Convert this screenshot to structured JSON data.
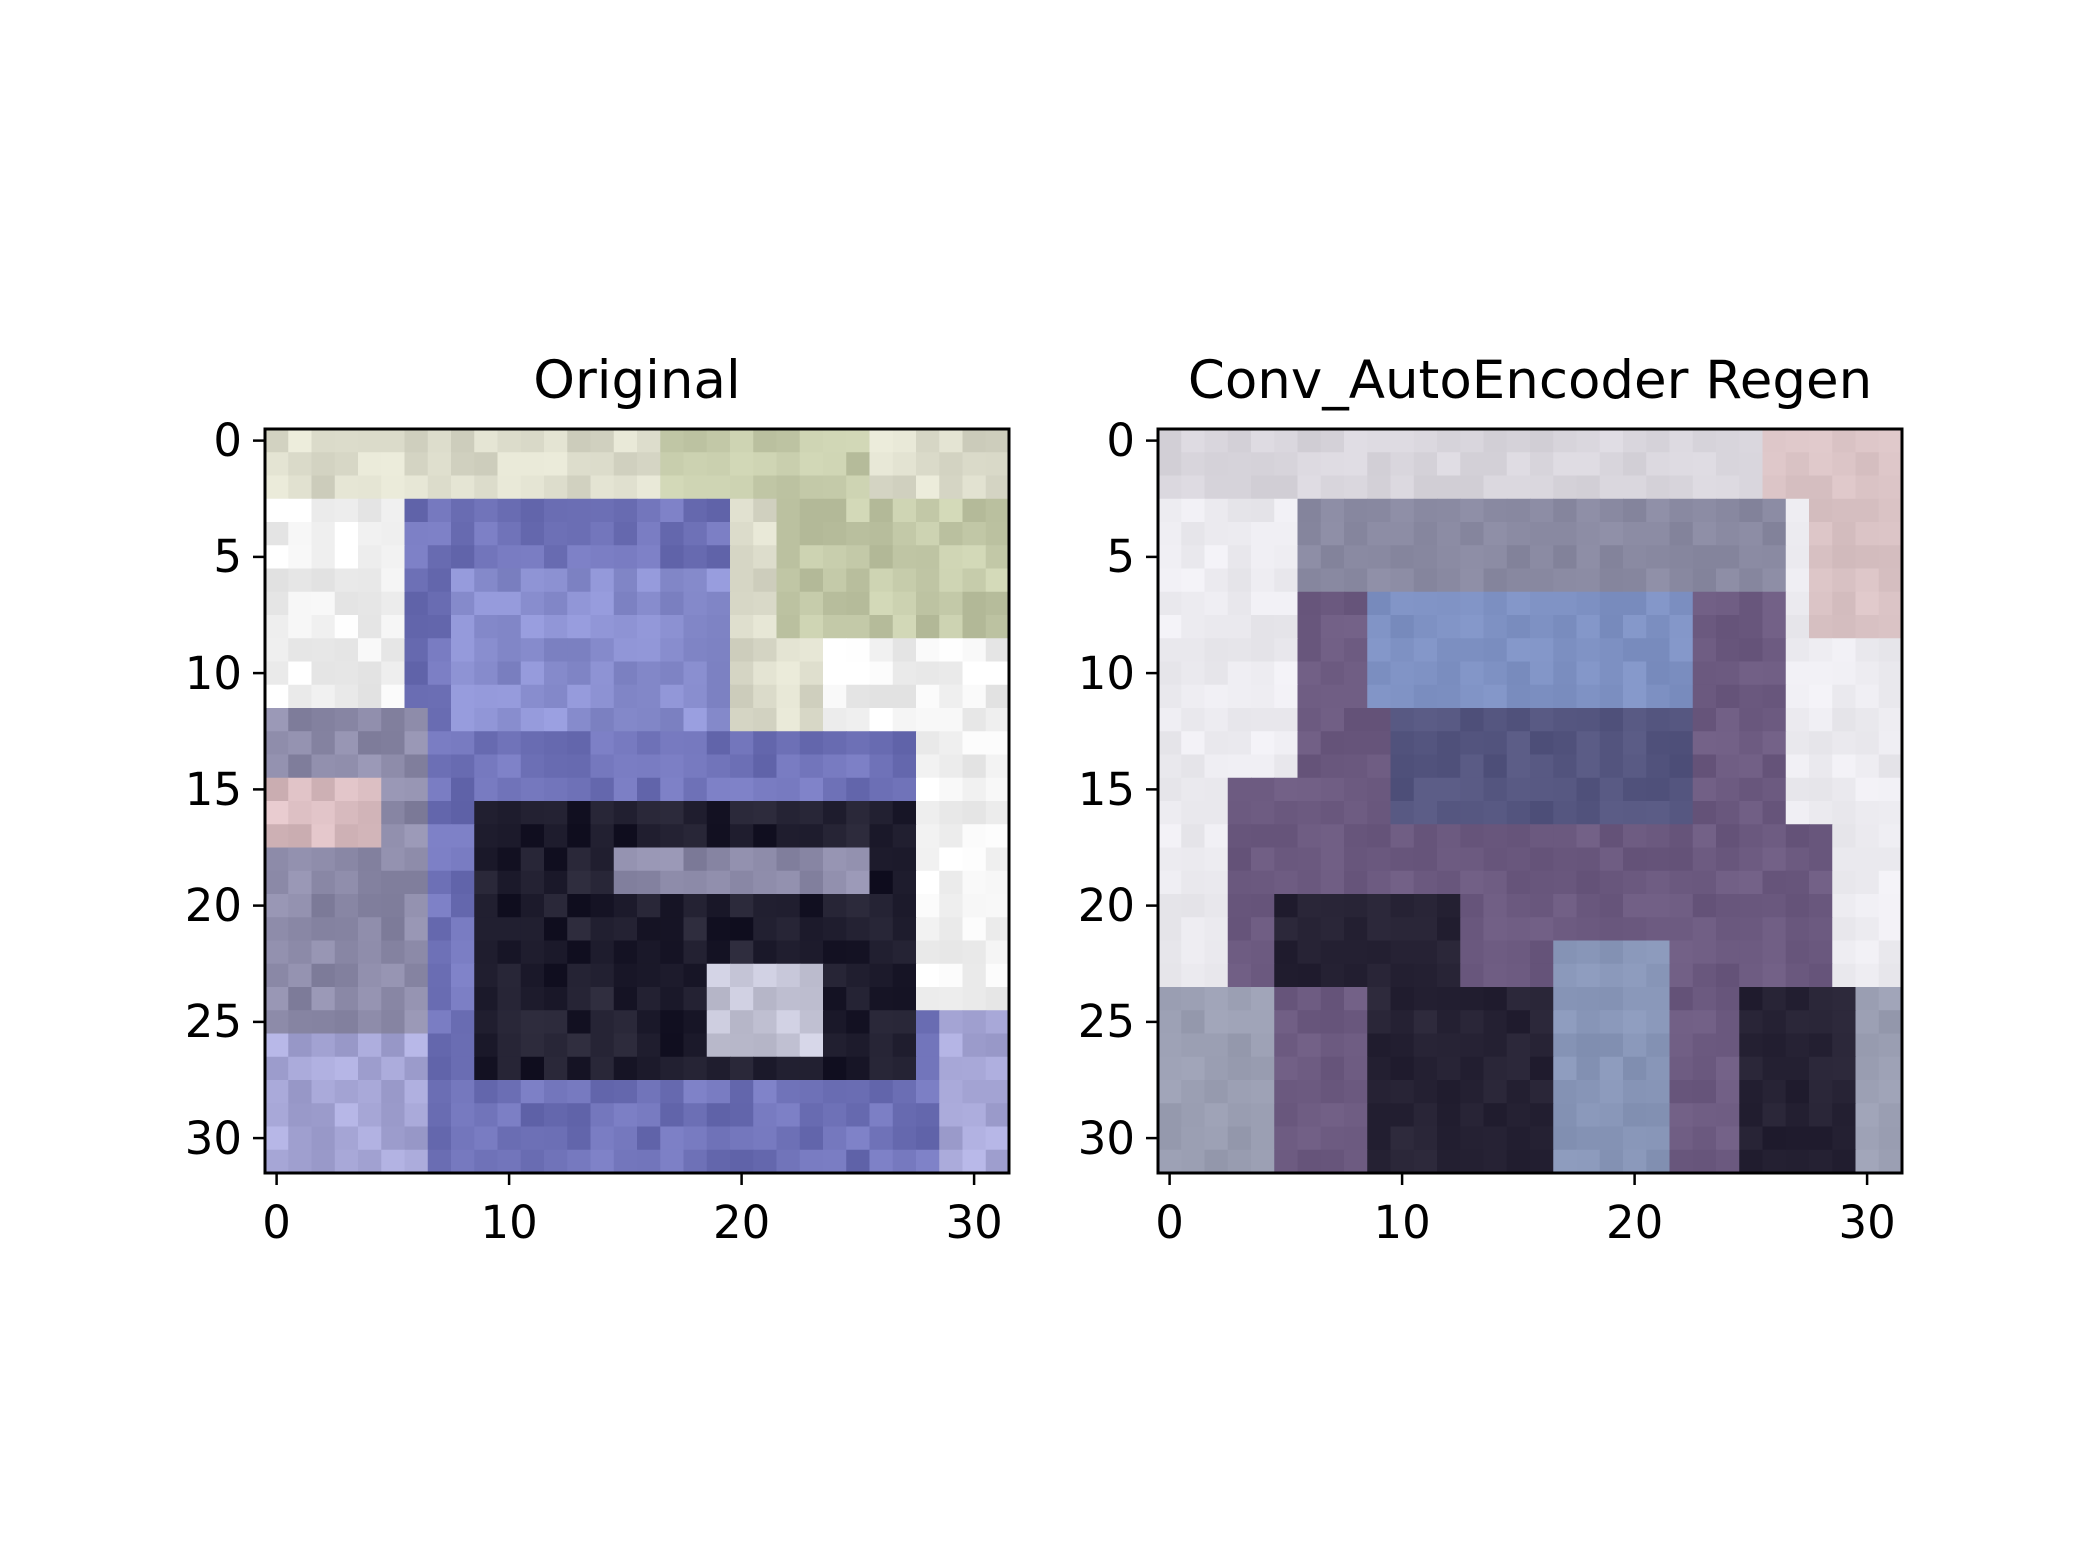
{
  "chart_data": [
    {
      "type": "heatmap",
      "title": "Original",
      "grid": false,
      "xlim": [
        -0.5,
        31.5
      ],
      "ylim": [
        31.5,
        -0.5
      ],
      "xticks": [
        0,
        10,
        20,
        30
      ],
      "yticks": [
        0,
        5,
        10,
        15,
        20,
        25,
        30
      ],
      "xticklabels": [
        "0",
        "10",
        "20",
        "30"
      ],
      "yticklabels": [
        "0",
        "5",
        "10",
        "15",
        "20",
        "25",
        "30"
      ],
      "image_size": [
        32,
        32
      ],
      "colors": {
        "sky": "#dcdccb",
        "foliage": "#c3c9a8",
        "wall": "#f2f2f2",
        "car_body": "#6f72b8",
        "windshield": "#8a8fd0",
        "grille_dark": "#1f1d2e",
        "bumper": "#8c8aa8",
        "plate": "#c6c6d8",
        "ground": "#a8a8d8",
        "lamp_pink": "#d9bcc0"
      }
    },
    {
      "type": "heatmap",
      "title": "Conv_AutoEncoder Regen",
      "grid": false,
      "xlim": [
        -0.5,
        31.5
      ],
      "ylim": [
        31.5,
        -0.5
      ],
      "xticks": [
        0,
        10,
        20,
        30
      ],
      "yticks": [
        0,
        5,
        10,
        15,
        20,
        25,
        30
      ],
      "xticklabels": [
        "0",
        "10",
        "20",
        "30"
      ],
      "yticklabels": [
        "0",
        "5",
        "10",
        "15",
        "20",
        "25",
        "30"
      ],
      "image_size": [
        32,
        32
      ],
      "colors": {
        "sky": "#d8d5dc",
        "wall": "#ecebf0",
        "roof": "#8a8aa2",
        "windshield": "#7f92c4",
        "hood": "#54557f",
        "body_purple": "#6c5a80",
        "dark": "#262234",
        "bumper_blue": "#8896b8",
        "ground": "#9a9eb2",
        "blush": "#d9c2c4"
      }
    }
  ]
}
